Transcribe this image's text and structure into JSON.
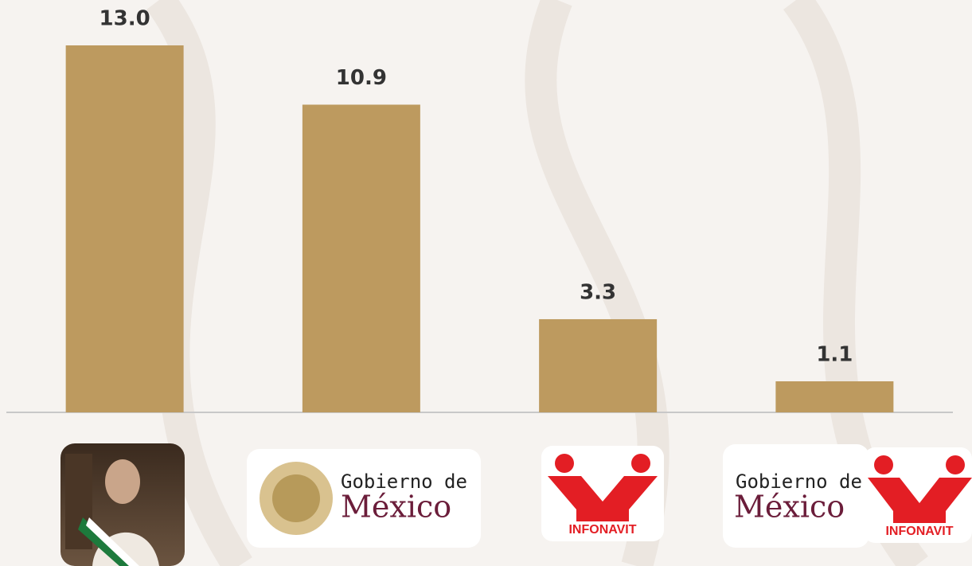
{
  "chart_data": {
    "type": "bar",
    "categories": [
      null,
      null,
      null,
      null
    ],
    "values": [
      13.0,
      10.9,
      3.3,
      1.1
    ],
    "value_labels": [
      "13.0",
      "10.9",
      "3.3",
      "1.1"
    ],
    "color": "#bd9a5f",
    "ylim": [
      0,
      13
    ]
  },
  "logos": [
    {
      "lines": [
        "Gobierno de",
        "México"
      ]
    },
    {
      "lines": [
        "INFONAVIT"
      ]
    },
    {
      "lines": [
        "Gobierno de",
        "México"
      ]
    },
    {
      "lines": [
        "INFONAVIT"
      ]
    }
  ]
}
